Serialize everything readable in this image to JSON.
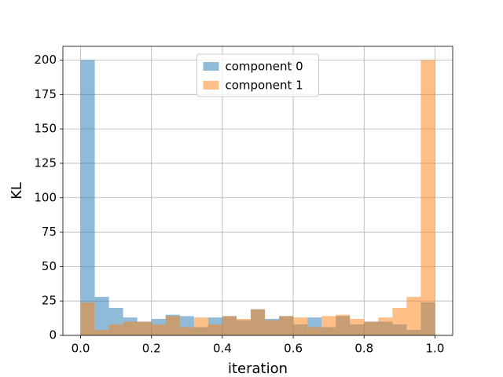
{
  "chart_data": {
    "type": "histogram",
    "xlabel": "iteration",
    "ylabel": "KL",
    "bins": [
      0,
      0.04,
      0.08,
      0.12,
      0.16,
      0.2,
      0.24,
      0.28,
      0.32,
      0.36,
      0.4,
      0.44,
      0.48,
      0.52,
      0.56,
      0.6,
      0.64,
      0.68,
      0.72,
      0.76,
      0.8,
      0.84,
      0.88,
      0.92,
      0.96,
      1
    ],
    "series": [
      {
        "name": "component 0",
        "color": "#1f77b4",
        "values": [
          200,
          28,
          20,
          13,
          10,
          12,
          15,
          14,
          6,
          13,
          14,
          11,
          19,
          12,
          14,
          8,
          13,
          6,
          14,
          8,
          10,
          10,
          8,
          4,
          24
        ]
      },
      {
        "name": "component 1",
        "color": "#ff7f0e",
        "values": [
          24,
          4,
          8,
          10,
          10,
          8,
          14,
          6,
          13,
          8,
          14,
          12,
          19,
          11,
          14,
          13,
          6,
          14,
          15,
          12,
          10,
          13,
          20,
          28,
          200
        ]
      }
    ],
    "opacity": 0.5,
    "xlim": [
      -0.05,
      1.05
    ],
    "xticks": [
      {
        "value": 0,
        "label": "0.0"
      },
      0.2,
      0.4,
      0.6,
      0.8,
      {
        "value": 1,
        "label": "1.0"
      }
    ],
    "ylim": [
      0,
      210
    ],
    "yticks": [
      0,
      25,
      50,
      75,
      100,
      125,
      150,
      175,
      200
    ],
    "grid": true,
    "legend": "upper center"
  }
}
